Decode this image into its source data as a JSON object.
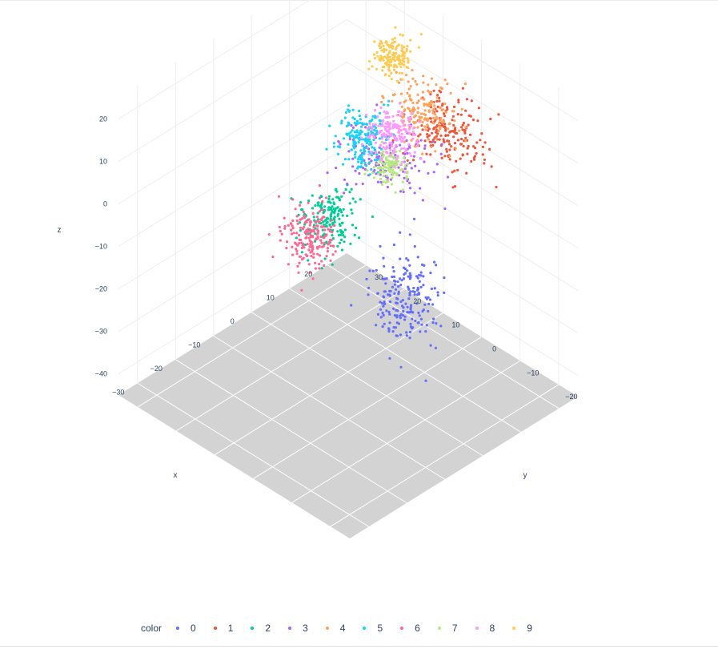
{
  "chart_data": {
    "type": "scatter3d",
    "axes": {
      "x": {
        "title": "x",
        "ticks": [
          20,
          10,
          0,
          -10,
          -20,
          -30
        ],
        "range": [
          -35,
          25
        ]
      },
      "y": {
        "title": "y",
        "ticks": [
          -20,
          -10,
          0,
          10,
          20,
          30
        ],
        "range": [
          -25,
          35
        ]
      },
      "z": {
        "title": "z",
        "ticks": [
          20,
          10,
          0,
          -10,
          -20,
          -30,
          -40
        ],
        "range": [
          -45,
          25
        ]
      }
    },
    "floor_color": "#d3d3d3",
    "legend": {
      "title": "color",
      "placement": "bottom"
    },
    "series": [
      {
        "name": "0",
        "color": "#636efa",
        "x": -10,
        "y": -15,
        "z": -8,
        "spread": [
          6,
          6,
          9
        ],
        "count": 200
      },
      {
        "name": "1",
        "color": "#ef553b",
        "x": 10,
        "y": -5,
        "z": 14,
        "spread": [
          6,
          7,
          6
        ],
        "count": 190
      },
      {
        "name": "2",
        "color": "#00cc96",
        "x": 5,
        "y": 20,
        "z": -18,
        "spread": [
          5,
          5,
          6
        ],
        "count": 180
      },
      {
        "name": "3",
        "color": "#ab63fa",
        "x": 10,
        "y": 10,
        "z": 0,
        "spread": [
          8,
          10,
          3
        ],
        "count": 150
      },
      {
        "name": "4",
        "color": "#ffa15a",
        "x": 12,
        "y": 2,
        "z": 14,
        "spread": [
          5,
          6,
          5
        ],
        "count": 170
      },
      {
        "name": "5",
        "color": "#19d3f3",
        "x": 15,
        "y": 21,
        "z": -5,
        "spread": [
          4,
          4,
          6
        ],
        "count": 180
      },
      {
        "name": "6",
        "color": "#ff6692",
        "x": -2,
        "y": 18,
        "z": -16,
        "spread": [
          4,
          5,
          6
        ],
        "count": 190
      },
      {
        "name": "7",
        "color": "#b6e880",
        "x": 5,
        "y": 4,
        "z": 4,
        "spread": [
          3,
          3,
          3
        ],
        "count": 110
      },
      {
        "name": "8",
        "color": "#ff97ff",
        "x": 10,
        "y": 8,
        "z": 6,
        "spread": [
          4,
          4,
          5
        ],
        "count": 170
      },
      {
        "name": "9",
        "color": "#fecb52",
        "x": 20,
        "y": 18,
        "z": 14,
        "spread": [
          3,
          3,
          4
        ],
        "count": 150
      }
    ]
  }
}
